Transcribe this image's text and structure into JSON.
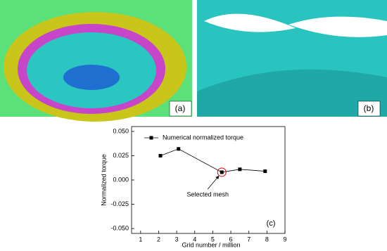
{
  "figure": {
    "panel_labels": [
      "(a)",
      "(b)"
    ]
  },
  "chart_data": {
    "type": "line",
    "x_label": "Grid number / million",
    "y_label": "Normalized torque",
    "panel_label": "(c)",
    "annotation": "Selected mesh",
    "x": [
      2.1,
      3.1,
      5.5,
      6.5,
      7.9
    ],
    "series": [
      {
        "name": "Numerical normalized torque",
        "color": "#000000",
        "values": [
          0.025,
          0.032,
          0.008,
          0.011,
          0.009
        ]
      }
    ],
    "xlim": [
      0.5,
      9
    ],
    "xticks": [
      1,
      2,
      3,
      4,
      5,
      6,
      7,
      8,
      9
    ],
    "ylim": [
      -0.055,
      0.055
    ],
    "yticks": [
      {
        "value": -0.05,
        "label": "-0.050"
      },
      {
        "value": -0.025,
        "label": "-0.025"
      },
      {
        "value": 0,
        "label": "0.000"
      },
      {
        "value": 0.025,
        "label": "0.025"
      },
      {
        "value": 0.05,
        "label": "0.050"
      }
    ],
    "legend": "upper left"
  }
}
